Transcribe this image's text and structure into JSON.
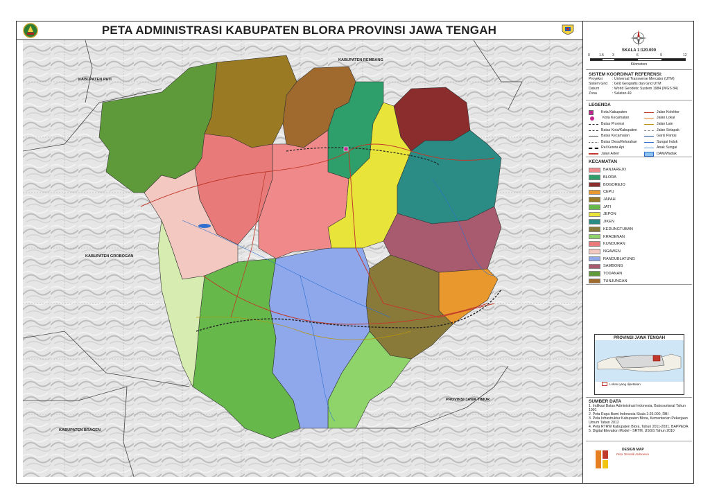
{
  "title": "PETA ADMINISTRASI KABUPATEN BLORA PROVINSI JAWA TENGAH",
  "scale": {
    "label": "SKALA 1:120.000",
    "ticks": [
      "0",
      "1.5",
      "3",
      "6",
      "9",
      "12"
    ],
    "unit": "Kilometers"
  },
  "reference": {
    "heading": "SISTEM KOORDINAT REFERENSI:",
    "rows": [
      {
        "k": "Proyeksi",
        "v": ": Universal Transverse Mercator (UTM)"
      },
      {
        "k": "Sistem Grid",
        "v": ": Grid Geografis dan Grid UTM"
      },
      {
        "k": "Datum",
        "v": ": World Geodetic System 1984 (WGS 84)"
      },
      {
        "k": "Zona",
        "v": ": Selatan 49"
      }
    ]
  },
  "legend": {
    "heading": "LEGENDA",
    "left": [
      "Kota Kabupaten",
      "Kota Kecamatan",
      "Batas Provinsi",
      "Batas Kota/Kabupaten",
      "Batas Kecamatan",
      "Batas Desa/Kelurahan",
      "Rel Kereta Api",
      "Jalan Arteri"
    ],
    "right": [
      "Jalan Kolektor",
      "Jalan Lokal",
      "Jalan Lain",
      "Jalan Setapak",
      "Garis Pantai",
      "Sungai Induk",
      "Anak Sungai",
      "DAM/Waduk"
    ]
  },
  "kecamatan": {
    "heading": "KECAMATAN",
    "items": [
      {
        "name": "BANJAREJO",
        "color": "#f08a8a"
      },
      {
        "name": "BLORA",
        "color": "#2e9e6a"
      },
      {
        "name": "BOGOREJO",
        "color": "#8b2d2d"
      },
      {
        "name": "CEPU",
        "color": "#e8982c"
      },
      {
        "name": "JAPAH",
        "color": "#9a7a22"
      },
      {
        "name": "JATI",
        "color": "#66b84a"
      },
      {
        "name": "JEPON",
        "color": "#e8e43a"
      },
      {
        "name": "JIKEN",
        "color": "#2a8c84"
      },
      {
        "name": "KEDUNGTUBAN",
        "color": "#8a7a3a"
      },
      {
        "name": "KRADENAN",
        "color": "#8ed46a"
      },
      {
        "name": "KUNDURAN",
        "color": "#e87a7a"
      },
      {
        "name": "NGAWEN",
        "color": "#f2c8c0"
      },
      {
        "name": "RANDUBLATUNG",
        "color": "#8fa8ec"
      },
      {
        "name": "SAMBONG",
        "color": "#a85a6e"
      },
      {
        "name": "TODANAN",
        "color": "#5e9a3a"
      },
      {
        "name": "TUNJUNGAN",
        "color": "#a06a2e"
      }
    ]
  },
  "inset": {
    "heading": "PROVINSI JAWA TENGAH",
    "caption": "Lokasi yang dipetakan"
  },
  "sources": {
    "heading": "SUMBER DATA",
    "items": [
      "1. Indikasi Batas Administrasi Indonesia, Bakosurtanal Tahun 1991",
      "2. Peta Rupa Bumi Indonesia Skala 1:25.000, RBI",
      "3. Peta Infrastruktur Kabupaten Blora, Kementerian Pekerjaan Umum Tahun 2012",
      "4. Peta RTRW Kabupaten Blora, Tahun 2011-2031, BAPPEDA",
      "5. Digital Elevation Model - SRTM, USGS Tahun 2010"
    ]
  },
  "design": {
    "heading": "DESIGN MAP",
    "subtitle": "Peta Tematik Indonesia"
  },
  "map_labels": {
    "kab_pati": "KABUPATEN PATI",
    "kab_rembang": "KABUPATEN REMBANG",
    "kab_grobogan": "KABUPATEN GROBOGAN",
    "kab_bragen": "KABUPATEN BRAGEN",
    "prov_jatim": "PROVINSI JAWA TIMUR"
  },
  "colors": {
    "frame": "#333333",
    "hill": "#d8d8d8",
    "kota_kabupaten": "#c2278f",
    "rail": "#222222",
    "road": "#c0392b"
  }
}
